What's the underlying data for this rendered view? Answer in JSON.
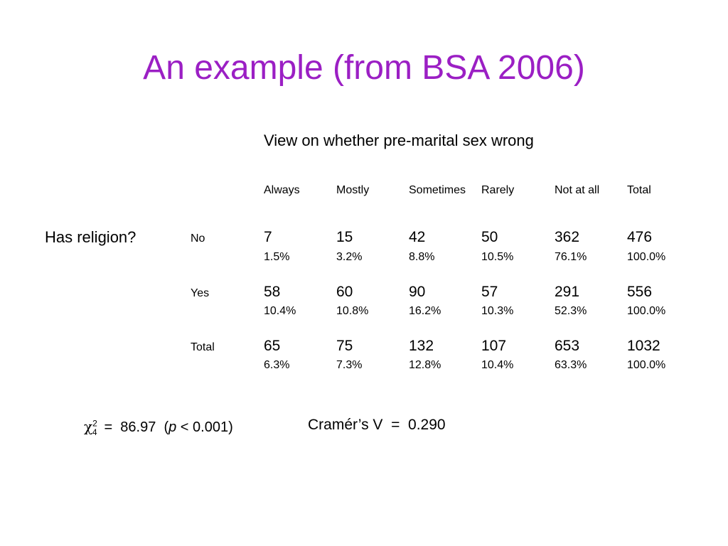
{
  "title": "An example (from BSA 2006)",
  "table": {
    "column_heading": "View on whether pre-marital sex wrong",
    "row_heading": "Has religion?",
    "categories": [
      "Always",
      "Mostly",
      "Sometimes",
      "Rarely",
      "Not at all",
      "Total"
    ],
    "rows": [
      {
        "label": "No",
        "counts": [
          "7",
          "15",
          "42",
          "50",
          "362",
          "476"
        ],
        "percents": [
          "1.5%",
          "3.2%",
          "8.8%",
          "10.5%",
          "76.1%",
          "100.0%"
        ]
      },
      {
        "label": "Yes",
        "counts": [
          "58",
          "60",
          "90",
          "57",
          "291",
          "556"
        ],
        "percents": [
          "10.4%",
          "10.8%",
          "16.2%",
          "10.3%",
          "52.3%",
          "100.0%"
        ]
      },
      {
        "label": "Total",
        "counts": [
          "65",
          "75",
          "132",
          "107",
          "653",
          "1032"
        ],
        "percents": [
          "6.3%",
          "7.3%",
          "12.8%",
          "10.4%",
          "63.3%",
          "100.0%"
        ]
      }
    ]
  },
  "stats": {
    "chi_symbol": "χ",
    "chi_sup": "2",
    "chi_sub": "4",
    "chi_value": "=  86.97  (",
    "p_symbol": "p",
    "p_value": " < 0.001)",
    "cramers_v": "Cramér’s V  =  0.290"
  },
  "colors": {
    "title": "#9b1fc4",
    "text": "#000000",
    "background": "#ffffff"
  }
}
